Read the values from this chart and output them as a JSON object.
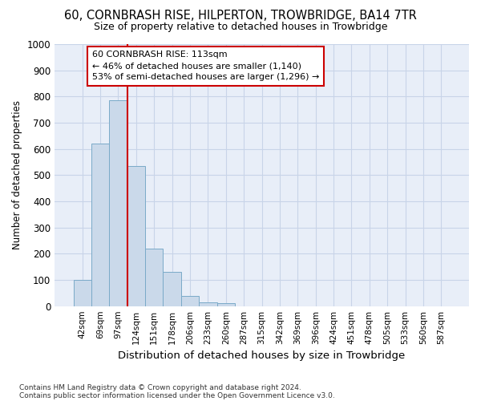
{
  "title": "60, CORNBRASH RISE, HILPERTON, TROWBRIDGE, BA14 7TR",
  "subtitle": "Size of property relative to detached houses in Trowbridge",
  "xlabel": "Distribution of detached houses by size in Trowbridge",
  "ylabel": "Number of detached properties",
  "footer_line1": "Contains HM Land Registry data © Crown copyright and database right 2024.",
  "footer_line2": "Contains public sector information licensed under the Open Government Licence v3.0.",
  "bin_labels": [
    "42sqm",
    "69sqm",
    "97sqm",
    "124sqm",
    "151sqm",
    "178sqm",
    "206sqm",
    "233sqm",
    "260sqm",
    "287sqm",
    "315sqm",
    "342sqm",
    "369sqm",
    "396sqm",
    "424sqm",
    "451sqm",
    "478sqm",
    "505sqm",
    "533sqm",
    "560sqm",
    "587sqm"
  ],
  "bar_values": [
    100,
    620,
    785,
    535,
    220,
    130,
    40,
    15,
    10,
    0,
    0,
    0,
    0,
    0,
    0,
    0,
    0,
    0,
    0,
    0,
    0
  ],
  "bar_color": "#cad9ea",
  "bar_edge_color": "#7aaac8",
  "vline_position": 2.5,
  "vline_color": "#cc0000",
  "ylim": [
    0,
    1000
  ],
  "yticks": [
    0,
    100,
    200,
    300,
    400,
    500,
    600,
    700,
    800,
    900,
    1000
  ],
  "annotation_line1": "60 CORNBRASH RISE: 113sqm",
  "annotation_line2": "← 46% of detached houses are smaller (1,140)",
  "annotation_line3": "53% of semi-detached houses are larger (1,296) →",
  "annotation_box_color": "#ffffff",
  "annotation_box_edge": "#cc0000",
  "grid_color": "#c8d4e8",
  "background_color": "#e8eef8"
}
